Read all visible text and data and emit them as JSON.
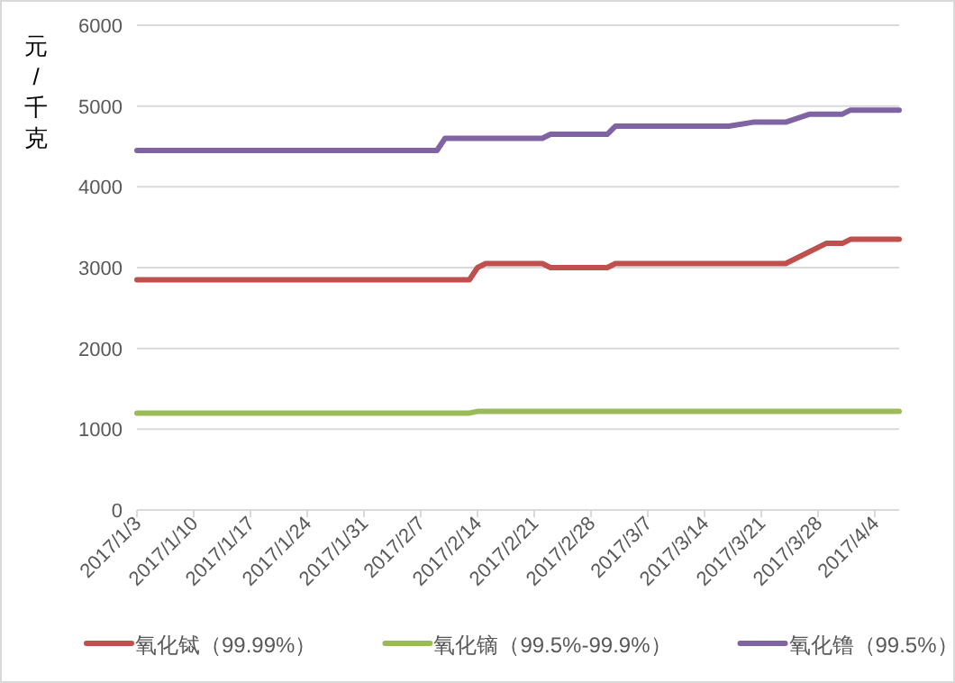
{
  "chart_data": {
    "type": "line",
    "ylabel": "元/千克",
    "xlim": [
      "2017-01-03",
      "2017-04-07"
    ],
    "xticks": [
      {
        "value": "2017-01-03",
        "label": "2017/1/3"
      },
      {
        "value": "2017-01-10",
        "label": "2017/1/10"
      },
      {
        "value": "2017-01-17",
        "label": "2017/1/17"
      },
      {
        "value": "2017-01-24",
        "label": "2017/1/24"
      },
      {
        "value": "2017-01-31",
        "label": "2017/1/31"
      },
      {
        "value": "2017-02-07",
        "label": "2017/2/7"
      },
      {
        "value": "2017-02-14",
        "label": "2017/2/14"
      },
      {
        "value": "2017-02-21",
        "label": "2017/2/21"
      },
      {
        "value": "2017-02-28",
        "label": "2017/2/28"
      },
      {
        "value": "2017-03-07",
        "label": "2017/3/7"
      },
      {
        "value": "2017-03-14",
        "label": "2017/3/14"
      },
      {
        "value": "2017-03-21",
        "label": "2017/3/21"
      },
      {
        "value": "2017-03-28",
        "label": "2017/3/28"
      },
      {
        "value": "2017-04-04",
        "label": "2017/4/4"
      }
    ],
    "ylim": [
      0,
      6000
    ],
    "yticks": [
      0,
      1000,
      2000,
      3000,
      4000,
      5000,
      6000
    ],
    "grid": "y",
    "legend": "bottom",
    "series": [
      {
        "name": "氧化铽（99.99%）",
        "color": "#c0504d",
        "x": [
          "2017-01-03",
          "2017-02-13",
          "2017-02-14",
          "2017-02-15",
          "2017-02-22",
          "2017-02-23",
          "2017-03-02",
          "2017-03-03",
          "2017-03-24",
          "2017-03-29",
          "2017-03-31",
          "2017-04-01",
          "2017-04-07"
        ],
        "values": [
          2850,
          2850,
          3000,
          3050,
          3050,
          3000,
          3000,
          3050,
          3050,
          3300,
          3300,
          3350,
          3350
        ]
      },
      {
        "name": "氧化镝（99.5%-99.9%）",
        "color": "#9bbb59",
        "x": [
          "2017-01-03",
          "2017-02-13",
          "2017-02-14",
          "2017-04-07"
        ],
        "values": [
          1200,
          1200,
          1220,
          1220
        ]
      },
      {
        "name": "氧化镥（99.5%）",
        "color": "#8064a2",
        "x": [
          "2017-01-03",
          "2017-02-09",
          "2017-02-10",
          "2017-02-22",
          "2017-02-23",
          "2017-03-02",
          "2017-03-03",
          "2017-03-17",
          "2017-03-20",
          "2017-03-24",
          "2017-03-27",
          "2017-03-31",
          "2017-04-01",
          "2017-04-07"
        ],
        "values": [
          4450,
          4450,
          4600,
          4600,
          4650,
          4650,
          4750,
          4750,
          4800,
          4800,
          4900,
          4900,
          4950,
          4950
        ]
      }
    ]
  }
}
